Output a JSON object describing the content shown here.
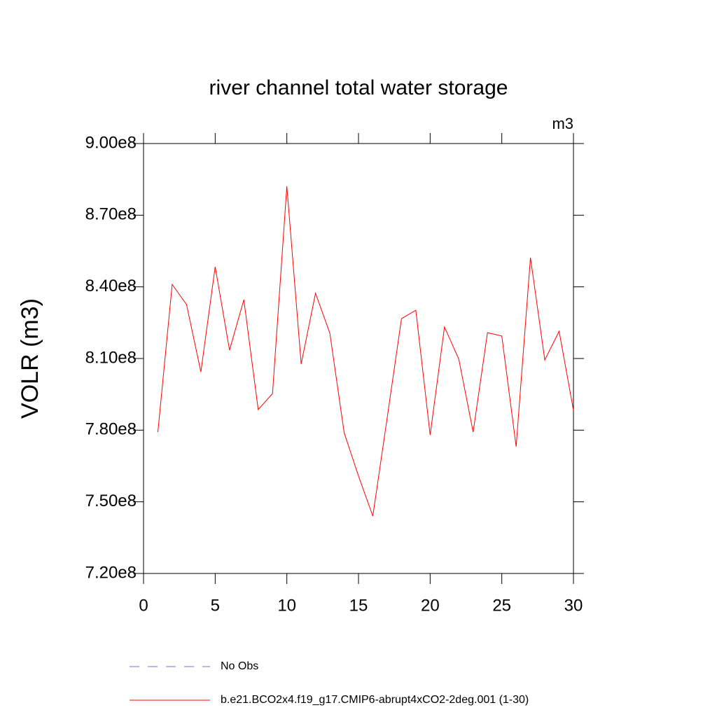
{
  "chart_data": {
    "type": "line",
    "title": "river channel total water storage",
    "units_label": "m3",
    "y_label": "VOLR  (m3)",
    "x": [
      1,
      2,
      3,
      4,
      5,
      6,
      7,
      8,
      9,
      10,
      11,
      12,
      13,
      14,
      15,
      16,
      17,
      18,
      19,
      20,
      21,
      22,
      23,
      24,
      25,
      26,
      27,
      28,
      29,
      30
    ],
    "series": [
      {
        "name": "No Obs",
        "color": "#7070c0",
        "dashed": true,
        "values": [
          null,
          null,
          null,
          null,
          null,
          null,
          null,
          null,
          null,
          null,
          null,
          null,
          null,
          null,
          null,
          null,
          null,
          null,
          null,
          null,
          null,
          null,
          null,
          null,
          null,
          null,
          null,
          null,
          null,
          null
        ]
      },
      {
        "name": "b.e21.BCO2x4.f19_g17.CMIP6-abrupt4xCO2-2deg.001 (1-30)",
        "color": "#ff0000",
        "dashed": false,
        "values": [
          779200000,
          841000000,
          832600000,
          804400000,
          848400000,
          813500000,
          834600000,
          788600000,
          795300000,
          882100000,
          807700000,
          837300000,
          820600000,
          778900000,
          760800000,
          744000000,
          785100000,
          826700000,
          830200000,
          778000000,
          823200000,
          809700000,
          779200000,
          820800000,
          819400000,
          773100000,
          852200000,
          809400000,
          821400000,
          788300000
        ]
      }
    ],
    "xlim": [
      0,
      30
    ],
    "xticks": [
      0,
      5,
      10,
      15,
      20,
      25,
      30
    ],
    "ylim": [
      720000000,
      900000000
    ],
    "yticks": [
      {
        "value": 720000000,
        "label": "7.20e8"
      },
      {
        "value": 750000000,
        "label": "7.50e8"
      },
      {
        "value": 780000000,
        "label": "7.80e8"
      },
      {
        "value": 810000000,
        "label": "8.10e8"
      },
      {
        "value": 840000000,
        "label": "8.40e8"
      },
      {
        "value": 870000000,
        "label": "8.70e8"
      },
      {
        "value": 900000000,
        "label": "9.00e8"
      }
    ],
    "grid": false
  }
}
